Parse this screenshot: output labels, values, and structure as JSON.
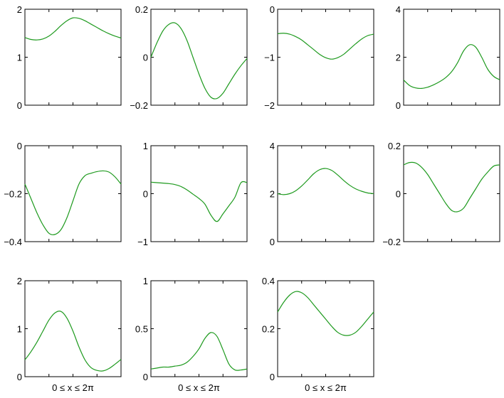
{
  "chart_data": [
    {
      "type": "line",
      "row": 0,
      "col": 0,
      "ylim": [
        0,
        2
      ],
      "yticks": [
        "2",
        "1",
        "0"
      ],
      "xlabel": "",
      "x": [
        0,
        0.3927,
        0.7854,
        1.1781,
        1.5708,
        1.9635,
        2.3562,
        2.7489,
        3.1416,
        3.5343,
        3.927,
        4.3197,
        4.7124,
        5.1051,
        5.4978,
        5.8905,
        6.2832
      ],
      "values": [
        1.41,
        1.37,
        1.36,
        1.38,
        1.44,
        1.54,
        1.66,
        1.76,
        1.82,
        1.81,
        1.76,
        1.69,
        1.62,
        1.55,
        1.49,
        1.44,
        1.4
      ]
    },
    {
      "type": "line",
      "row": 0,
      "col": 1,
      "ylim": [
        -0.2,
        0.2
      ],
      "yticks": [
        "0.2",
        "0",
        "−0.2"
      ],
      "xlabel": "",
      "x": [
        0,
        0.3927,
        0.7854,
        1.1781,
        1.5708,
        1.9635,
        2.3562,
        2.7489,
        3.1416,
        3.5343,
        3.927,
        4.3197,
        4.7124,
        5.1051,
        5.4978,
        5.8905,
        6.2832
      ],
      "values": [
        0,
        0.06,
        0.11,
        0.137,
        0.143,
        0.12,
        0.07,
        0.0,
        -0.07,
        -0.13,
        -0.167,
        -0.172,
        -0.15,
        -0.11,
        -0.07,
        -0.035,
        -0.005
      ]
    },
    {
      "type": "line",
      "row": 0,
      "col": 2,
      "ylim": [
        -2,
        0
      ],
      "yticks": [
        "0",
        "−1",
        "−2"
      ],
      "xlabel": "",
      "x": [
        0,
        0.3927,
        0.7854,
        1.1781,
        1.5708,
        1.9635,
        2.3562,
        2.7489,
        3.1416,
        3.5343,
        3.927,
        4.3197,
        4.7124,
        5.1051,
        5.4978,
        5.8905,
        6.2832
      ],
      "values": [
        -0.51,
        -0.5,
        -0.52,
        -0.57,
        -0.64,
        -0.74,
        -0.84,
        -0.94,
        -1.01,
        -1.04,
        -1.01,
        -0.94,
        -0.83,
        -0.72,
        -0.62,
        -0.55,
        -0.52
      ]
    },
    {
      "type": "line",
      "row": 0,
      "col": 3,
      "ylim": [
        0,
        4
      ],
      "yticks": [
        "4",
        "2",
        "0"
      ],
      "xlabel": "",
      "x": [
        0,
        0.3927,
        0.7854,
        1.1781,
        1.5708,
        1.9635,
        2.3562,
        2.7489,
        3.1416,
        3.5343,
        3.927,
        4.3197,
        4.7124,
        5.1051,
        5.4978,
        5.8905,
        6.2832
      ],
      "values": [
        1.05,
        0.82,
        0.72,
        0.7,
        0.75,
        0.85,
        0.98,
        1.15,
        1.4,
        1.78,
        2.27,
        2.52,
        2.42,
        2.0,
        1.5,
        1.2,
        1.06
      ]
    },
    {
      "type": "line",
      "row": 1,
      "col": 0,
      "ylim": [
        -0.4,
        0
      ],
      "yticks": [
        "0",
        "−0.2",
        "−0.4"
      ],
      "xlabel": "",
      "x": [
        0,
        0.3927,
        0.7854,
        1.1781,
        1.5708,
        1.9635,
        2.3562,
        2.7489,
        3.1416,
        3.5343,
        3.927,
        4.3197,
        4.7124,
        5.1051,
        5.4978,
        5.8905,
        6.2832
      ],
      "values": [
        -0.16,
        -0.22,
        -0.28,
        -0.33,
        -0.365,
        -0.37,
        -0.35,
        -0.3,
        -0.23,
        -0.16,
        -0.125,
        -0.115,
        -0.108,
        -0.105,
        -0.11,
        -0.13,
        -0.16
      ]
    },
    {
      "type": "line",
      "row": 1,
      "col": 1,
      "ylim": [
        -1,
        1
      ],
      "yticks": [
        "1",
        "0",
        "−1"
      ],
      "xlabel": "",
      "x": [
        0,
        0.3927,
        0.7854,
        1.1781,
        1.5708,
        1.9635,
        2.3562,
        2.7489,
        3.1416,
        3.5343,
        3.927,
        4.3197,
        4.7124,
        5.1051,
        5.4978,
        5.8905,
        6.2832
      ],
      "values": [
        0.24,
        0.23,
        0.22,
        0.21,
        0.19,
        0.15,
        0.08,
        -0.01,
        -0.1,
        -0.22,
        -0.45,
        -0.58,
        -0.42,
        -0.25,
        -0.07,
        0.23,
        0.23
      ]
    },
    {
      "type": "line",
      "row": 1,
      "col": 2,
      "ylim": [
        0,
        4
      ],
      "yticks": [
        "4",
        "2",
        "0"
      ],
      "xlabel": "",
      "x": [
        0,
        0.3927,
        0.7854,
        1.1781,
        1.5708,
        1.9635,
        2.3562,
        2.7489,
        3.1416,
        3.5343,
        3.927,
        4.3197,
        4.7124,
        5.1051,
        5.4978,
        5.8905,
        6.2832
      ],
      "values": [
        2.0,
        1.96,
        2.0,
        2.12,
        2.32,
        2.57,
        2.83,
        3.0,
        3.05,
        2.97,
        2.78,
        2.55,
        2.35,
        2.2,
        2.1,
        2.03,
        2.0
      ]
    },
    {
      "type": "line",
      "row": 1,
      "col": 3,
      "ylim": [
        -0.2,
        0.2
      ],
      "yticks": [
        "0.2",
        "0",
        "−0.2"
      ],
      "xlabel": "",
      "x": [
        0,
        0.3927,
        0.7854,
        1.1781,
        1.5708,
        1.9635,
        2.3562,
        2.7489,
        3.1416,
        3.5343,
        3.927,
        4.3197,
        4.7124,
        5.1051,
        5.4978,
        5.8905,
        6.2832
      ],
      "values": [
        0.12,
        0.13,
        0.128,
        0.11,
        0.08,
        0.04,
        0.0,
        -0.04,
        -0.07,
        -0.075,
        -0.06,
        -0.02,
        0.02,
        0.06,
        0.09,
        0.115,
        0.12
      ]
    },
    {
      "type": "line",
      "row": 2,
      "col": 0,
      "ylim": [
        0,
        2
      ],
      "yticks": [
        "2",
        "1",
        "0"
      ],
      "xlabel": "0 ≤ x ≤ 2π",
      "x": [
        0,
        0.3927,
        0.7854,
        1.1781,
        1.5708,
        1.9635,
        2.3562,
        2.7489,
        3.1416,
        3.5343,
        3.927,
        4.3197,
        4.7124,
        5.1051,
        5.4978,
        5.8905,
        6.2832
      ],
      "values": [
        0.35,
        0.52,
        0.72,
        0.95,
        1.18,
        1.33,
        1.36,
        1.22,
        0.95,
        0.62,
        0.35,
        0.19,
        0.13,
        0.12,
        0.17,
        0.26,
        0.36
      ]
    },
    {
      "type": "line",
      "row": 2,
      "col": 1,
      "ylim": [
        0,
        1
      ],
      "yticks": [
        "1",
        "0.5",
        "0"
      ],
      "xlabel": "0 ≤ x ≤ 2π",
      "x": [
        0,
        0.3927,
        0.7854,
        1.1781,
        1.5708,
        1.9635,
        2.3562,
        2.7489,
        3.1416,
        3.5343,
        3.927,
        4.3197,
        4.7124,
        5.1051,
        5.4978,
        5.8905,
        6.2832
      ],
      "values": [
        0.08,
        0.09,
        0.1,
        0.1,
        0.11,
        0.12,
        0.15,
        0.21,
        0.29,
        0.4,
        0.46,
        0.42,
        0.28,
        0.13,
        0.07,
        0.07,
        0.08
      ]
    },
    {
      "type": "line",
      "row": 2,
      "col": 2,
      "ylim": [
        0,
        0.4
      ],
      "yticks": [
        "0.4",
        "0.2",
        "0"
      ],
      "xlabel": "0 ≤ x ≤ 2π",
      "x": [
        0,
        0.3927,
        0.7854,
        1.1781,
        1.5708,
        1.9635,
        2.3562,
        2.7489,
        3.1416,
        3.5343,
        3.927,
        4.3197,
        4.7124,
        5.1051,
        5.4978,
        5.8905,
        6.2832
      ],
      "values": [
        0.27,
        0.31,
        0.34,
        0.355,
        0.35,
        0.33,
        0.3,
        0.27,
        0.24,
        0.21,
        0.185,
        0.173,
        0.173,
        0.185,
        0.21,
        0.24,
        0.27
      ]
    }
  ],
  "style": {
    "line_color": "#1e9a1e",
    "axes_color": "#000000"
  }
}
